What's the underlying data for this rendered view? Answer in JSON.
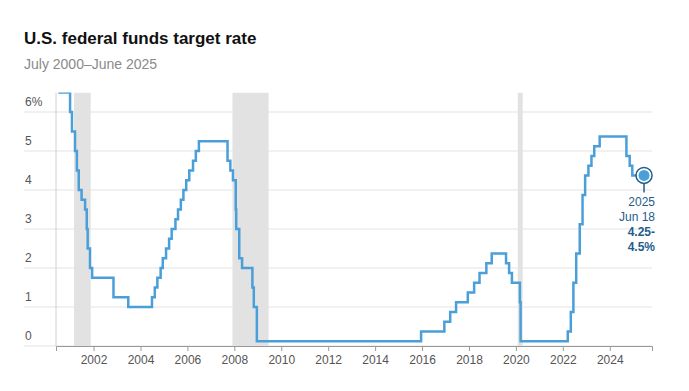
{
  "chart_data": {
    "type": "line",
    "line_style": "step",
    "title": "U.S. federal funds target rate",
    "subtitle": "July 2000–June 2025",
    "color": "#4a9fd8",
    "grid": true,
    "x": [
      2000.5,
      2001.0,
      2001.08,
      2001.21,
      2001.29,
      2001.37,
      2001.49,
      2001.64,
      2001.71,
      2001.75,
      2001.85,
      2001.94,
      2002.85,
      2003.48,
      2004.49,
      2004.61,
      2004.72,
      2004.86,
      2004.95,
      2005.09,
      2005.22,
      2005.33,
      2005.49,
      2005.6,
      2005.72,
      2005.83,
      2005.95,
      2006.08,
      2006.24,
      2006.36,
      2006.49,
      2007.71,
      2007.83,
      2007.94,
      2008.06,
      2008.08,
      2008.21,
      2008.33,
      2008.77,
      2008.83,
      2008.96,
      2015.96,
      2016.95,
      2017.2,
      2017.45,
      2017.95,
      2018.22,
      2018.45,
      2018.74,
      2018.97,
      2019.58,
      2019.71,
      2019.83,
      2020.17,
      2020.2,
      2022.21,
      2022.34,
      2022.45,
      2022.57,
      2022.72,
      2022.84,
      2022.95,
      2023.09,
      2023.22,
      2023.34,
      2023.57,
      2024.71,
      2024.85,
      2024.96,
      2025.46
    ],
    "values": [
      6.5,
      6.0,
      5.5,
      5.0,
      4.5,
      4.0,
      3.75,
      3.5,
      3.0,
      2.5,
      2.0,
      1.75,
      1.25,
      1.0,
      1.25,
      1.5,
      1.75,
      2.0,
      2.25,
      2.5,
      2.75,
      3.0,
      3.25,
      3.5,
      3.75,
      4.0,
      4.25,
      4.5,
      4.75,
      5.0,
      5.25,
      4.75,
      4.5,
      4.25,
      3.5,
      3.0,
      2.25,
      2.0,
      1.5,
      1.0,
      0.125,
      0.375,
      0.625,
      0.875,
      1.125,
      1.375,
      1.625,
      1.875,
      2.125,
      2.375,
      2.125,
      1.875,
      1.625,
      1.125,
      0.125,
      0.375,
      0.875,
      1.625,
      2.375,
      3.125,
      3.875,
      4.375,
      4.625,
      4.875,
      5.125,
      5.375,
      4.875,
      4.625,
      4.375,
      4.375
    ],
    "xlim": [
      2000.4,
      2025.8
    ],
    "xticks": [
      2002,
      2004,
      2006,
      2008,
      2010,
      2012,
      2014,
      2016,
      2018,
      2020,
      2022,
      2024
    ],
    "ylim": [
      0,
      6.5
    ],
    "yticks": [
      0,
      1,
      2,
      3,
      4,
      5,
      {
        "value": 6,
        "label": "6%"
      }
    ],
    "shaded_periods": [
      [
        2001.17,
        2001.88
      ],
      [
        2007.92,
        2009.46
      ],
      [
        2020.08,
        2020.29
      ]
    ],
    "annotation": {
      "date": "2025 Jun 18",
      "label": "4.25-4.5%"
    }
  }
}
